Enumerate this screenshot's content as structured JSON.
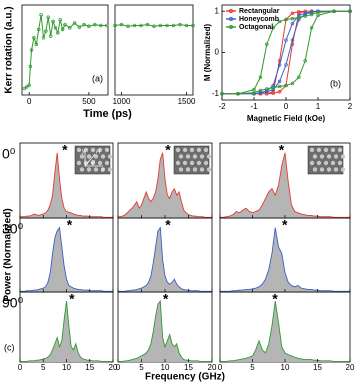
{
  "chart_data": [
    {
      "type": "line",
      "color": "#2e9a2e",
      "ylabel": "Kerr rotation (a.u.)",
      "xlabel": "Time (ps)",
      "annotation": "(a)",
      "x": [
        -40,
        -20,
        0,
        10,
        20,
        40,
        60,
        80,
        100,
        120,
        140,
        160,
        180,
        200,
        220,
        240,
        260,
        280,
        300,
        340,
        380,
        420,
        460,
        500,
        550,
        600,
        650
      ],
      "values": [
        0.08,
        0.1,
        0.12,
        0.35,
        0.55,
        0.7,
        0.62,
        0.8,
        0.98,
        0.7,
        0.78,
        0.95,
        0.72,
        0.9,
        0.82,
        0.76,
        0.92,
        0.8,
        0.86,
        0.82,
        0.88,
        0.83,
        0.86,
        0.84,
        0.86,
        0.85,
        0.85
      ],
      "xlim": [
        -60,
        660
      ],
      "xticks": [
        0,
        500
      ],
      "ylim": [
        0,
        1.1
      ]
    },
    {
      "type": "line",
      "color": "#2e9a2e",
      "x": [
        950,
        1000,
        1050,
        1100,
        1150,
        1200,
        1250,
        1300,
        1350,
        1400,
        1450,
        1500,
        1550
      ],
      "values": [
        0.85,
        0.86,
        0.84,
        0.85,
        0.85,
        0.86,
        0.84,
        0.85,
        0.85,
        0.85,
        0.86,
        0.85,
        0.85
      ],
      "xlim": [
        950,
        1550
      ],
      "xticks": [
        1000,
        1500
      ],
      "ylim": [
        0,
        1.1
      ]
    },
    {
      "type": "line",
      "ylabel": "M (Normalized)",
      "xlabel": "Magnetic Field (kOe)",
      "annotation": "(b)",
      "legend": "upper left",
      "x": [
        2,
        1.5,
        1,
        0.8,
        0.6,
        0.4,
        0.2,
        0,
        -0.2,
        -0.4,
        -0.6,
        -0.8,
        -1,
        -1.5,
        -2,
        -1.5,
        -1,
        -0.8,
        -0.6,
        -0.4,
        -0.2,
        0,
        0.2,
        0.4,
        0.6,
        0.8,
        1,
        1.5,
        2
      ],
      "series": [
        {
          "name": "Rectangular",
          "color": "#e8392b",
          "values": [
            1,
            1,
            1,
            1,
            1,
            0.99,
            0.95,
            0.8,
            -0.2,
            -0.95,
            -1,
            -1,
            -1,
            -1,
            -1,
            -1,
            -1,
            -1,
            -1,
            -0.99,
            -0.95,
            -0.8,
            0.2,
            0.95,
            1,
            1,
            1,
            1,
            1
          ]
        },
        {
          "name": "Honeycomb",
          "color": "#3a5fcd",
          "values": [
            1,
            1,
            1,
            0.98,
            0.95,
            0.9,
            0.7,
            0.3,
            -0.3,
            -0.8,
            -0.93,
            -0.97,
            -1,
            -1,
            -1,
            -1,
            -1,
            -0.98,
            -0.95,
            -0.9,
            -0.7,
            -0.3,
            0.3,
            0.8,
            0.93,
            0.97,
            1,
            1,
            1
          ]
        },
        {
          "name": "Octagonal",
          "color": "#2e9a2e",
          "values": [
            1,
            1,
            0.97,
            0.92,
            0.88,
            0.85,
            0.82,
            0.8,
            0.75,
            0.6,
            0.2,
            -0.6,
            -0.9,
            -1,
            -1,
            -1,
            -0.97,
            -0.92,
            -0.88,
            -0.85,
            -0.82,
            -0.8,
            -0.75,
            -0.6,
            -0.2,
            0.6,
            0.9,
            1,
            1
          ]
        }
      ],
      "xlim": [
        -2,
        2
      ],
      "xticks": [
        -2,
        -1,
        0,
        1,
        2
      ],
      "ylim": [
        -1.15,
        1.15
      ],
      "yticks": [
        -1,
        0,
        1
      ]
    },
    {
      "type": "area",
      "xlabel": "Frequency (GHz)",
      "ylabel": "Power (Normalized)",
      "annotation": "(c)",
      "fill": "#b5b5b5",
      "row_labels": [
        "0⁰",
        "30⁰",
        "90⁰"
      ],
      "inset_labels": [
        "y",
        "H",
        "φ",
        "x"
      ],
      "x": [
        0,
        0.5,
        1,
        1.5,
        2,
        2.5,
        3,
        3.5,
        4,
        4.5,
        5,
        5.5,
        6,
        6.5,
        7,
        7.5,
        8,
        8.5,
        9,
        9.5,
        10,
        10.5,
        11,
        11.5,
        12,
        12.5,
        13,
        13.5,
        14,
        14.5,
        15,
        15.5,
        16,
        16.5,
        17,
        17.5,
        18,
        18.5,
        19,
        19.5,
        20
      ],
      "xlim": [
        0,
        20
      ],
      "xticks": [
        0,
        5,
        10,
        15,
        20
      ],
      "ylim": [
        0,
        1.15
      ],
      "panels": [
        [
          {
            "color": "#e8392b",
            "star": {
              "text": "*",
              "x": 9
            },
            "values": [
              0.02,
              0.02,
              0.02,
              0.03,
              0.03,
              0.04,
              0.06,
              0.05,
              0.04,
              0.05,
              0.06,
              0.08,
              0.12,
              0.2,
              0.35,
              0.7,
              1.0,
              0.6,
              0.3,
              0.15,
              0.1,
              0.09,
              0.08,
              0.06,
              0.05,
              0.04,
              0.04,
              0.03,
              0.03,
              0.03,
              0.02,
              0.02,
              0.02,
              0.02,
              0.02,
              0.02,
              0.01,
              0.01,
              0.01,
              0.01,
              0.01
            ]
          },
          {
            "color": "#e8392b",
            "star": {
              "text": "*",
              "x": 10
            },
            "values": [
              0.02,
              0.02,
              0.03,
              0.05,
              0.08,
              0.12,
              0.15,
              0.2,
              0.25,
              0.15,
              0.2,
              0.3,
              0.4,
              0.3,
              0.25,
              0.3,
              0.4,
              0.6,
              0.9,
              1.0,
              0.6,
              0.35,
              0.3,
              0.4,
              0.45,
              0.35,
              0.4,
              0.25,
              0.12,
              0.08,
              0.05,
              0.04,
              0.03,
              0.03,
              0.02,
              0.02,
              0.02,
              0.01,
              0.01,
              0.01,
              0.01
            ]
          },
          {
            "color": "#e8392b",
            "star": {
              "text": "*",
              "x": 9
            },
            "values": [
              0.01,
              0.01,
              0.02,
              0.03,
              0.05,
              0.1,
              0.08,
              0.12,
              0.15,
              0.1,
              0.08,
              0.1,
              0.12,
              0.2,
              0.3,
              0.4,
              0.45,
              0.35,
              0.5,
              0.8,
              1.0,
              0.55,
              0.2,
              0.1,
              0.08,
              0.06,
              0.05,
              0.04,
              0.04,
              0.03,
              0.03,
              0.02,
              0.02,
              0.02,
              0.02,
              0.01,
              0.01,
              0.01,
              0.01,
              0.01,
              0.01
            ]
          }
        ],
        [
          {
            "color": "#3a5fcd",
            "star": {
              "text": "*",
              "x": 10
            },
            "values": [
              0.01,
              0.01,
              0.01,
              0.02,
              0.02,
              0.02,
              0.03,
              0.03,
              0.04,
              0.05,
              0.06,
              0.08,
              0.15,
              0.3,
              0.6,
              0.85,
              0.95,
              1.0,
              0.7,
              0.4,
              0.2,
              0.1,
              0.08,
              0.06,
              0.05,
              0.04,
              0.04,
              0.03,
              0.03,
              0.03,
              0.02,
              0.02,
              0.02,
              0.02,
              0.02,
              0.02,
              0.01,
              0.01,
              0.01,
              0.01,
              0.01
            ]
          },
          {
            "color": "#3a5fcd",
            "star": {
              "text": "*",
              "x": 10
            },
            "values": [
              0.01,
              0.01,
              0.01,
              0.01,
              0.02,
              0.02,
              0.03,
              0.03,
              0.04,
              0.05,
              0.06,
              0.08,
              0.1,
              0.15,
              0.25,
              0.45,
              0.7,
              0.95,
              1.0,
              0.5,
              0.25,
              0.15,
              0.12,
              0.15,
              0.2,
              0.12,
              0.08,
              0.05,
              0.04,
              0.03,
              0.03,
              0.02,
              0.02,
              0.02,
              0.02,
              0.01,
              0.01,
              0.01,
              0.01,
              0.01,
              0.01
            ]
          },
          {
            "color": "#3a5fcd",
            "star": {
              "text": "*",
              "x": 9.5
            },
            "values": [
              0.01,
              0.01,
              0.01,
              0.01,
              0.02,
              0.02,
              0.03,
              0.03,
              0.04,
              0.04,
              0.05,
              0.06,
              0.08,
              0.12,
              0.2,
              0.35,
              0.6,
              1.0,
              0.7,
              0.6,
              0.3,
              0.15,
              0.1,
              0.08,
              0.1,
              0.06,
              0.05,
              0.04,
              0.04,
              0.03,
              0.03,
              0.02,
              0.02,
              0.02,
              0.02,
              0.01,
              0.01,
              0.01,
              0.01,
              0.01,
              0.01
            ]
          }
        ],
        [
          {
            "color": "#2e9a2e",
            "star": {
              "text": "*",
              "x": 10.5
            },
            "values": [
              0.01,
              0.01,
              0.01,
              0.01,
              0.02,
              0.02,
              0.02,
              0.03,
              0.03,
              0.04,
              0.05,
              0.06,
              0.08,
              0.12,
              0.2,
              0.3,
              0.4,
              0.25,
              0.35,
              0.7,
              1.0,
              0.6,
              0.25,
              0.2,
              0.3,
              0.15,
              0.08,
              0.05,
              0.04,
              0.03,
              0.03,
              0.02,
              0.02,
              0.02,
              0.02,
              0.01,
              0.01,
              0.01,
              0.01,
              0.01,
              0.01
            ]
          },
          {
            "color": "#2e9a2e",
            "star": {
              "text": "*",
              "x": 9.5
            },
            "values": [
              0.01,
              0.01,
              0.01,
              0.02,
              0.02,
              0.03,
              0.04,
              0.05,
              0.06,
              0.08,
              0.1,
              0.12,
              0.15,
              0.2,
              0.3,
              0.5,
              0.75,
              0.95,
              1.0,
              0.4,
              0.25,
              0.35,
              0.45,
              0.3,
              0.25,
              0.3,
              0.15,
              0.08,
              0.04,
              0.03,
              0.03,
              0.02,
              0.02,
              0.02,
              0.02,
              0.01,
              0.01,
              0.01,
              0.01,
              0.01,
              0.01
            ]
          },
          {
            "color": "#2e9a2e",
            "star": {
              "text": "*",
              "x": 8
            },
            "values": [
              0.01,
              0.01,
              0.01,
              0.02,
              0.02,
              0.03,
              0.04,
              0.05,
              0.06,
              0.08,
              0.1,
              0.2,
              0.35,
              0.2,
              0.15,
              0.3,
              0.6,
              1.0,
              0.65,
              0.25,
              0.15,
              0.12,
              0.1,
              0.08,
              0.06,
              0.05,
              0.04,
              0.04,
              0.04,
              0.03,
              0.03,
              0.02,
              0.02,
              0.02,
              0.02,
              0.01,
              0.01,
              0.01,
              0.01,
              0.01,
              0.01
            ]
          }
        ]
      ]
    }
  ]
}
